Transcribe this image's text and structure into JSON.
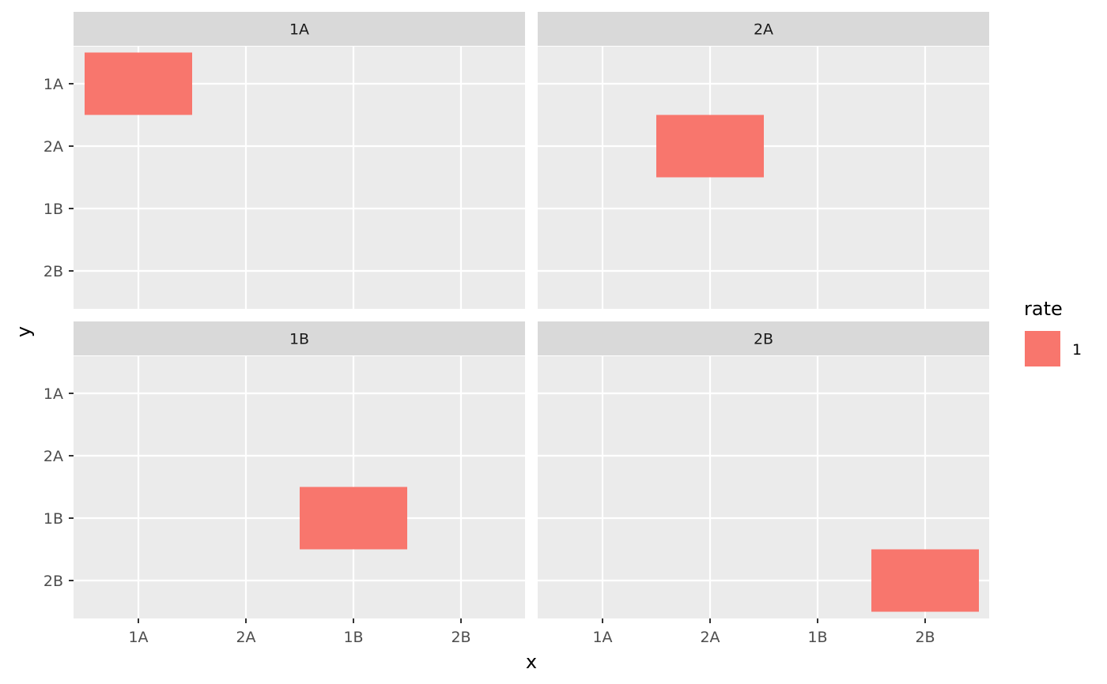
{
  "chart_data": {
    "type": "heatmap",
    "facet_by": "panel",
    "panels": [
      "1A",
      "2A",
      "1B",
      "2B"
    ],
    "x_categories": [
      "1A",
      "2A",
      "1B",
      "2B"
    ],
    "y_categories": [
      "1A",
      "2A",
      "1B",
      "2B"
    ],
    "xlabel": "x",
    "ylabel": "y",
    "tiles": [
      {
        "panel": "1A",
        "x": "1A",
        "y": "1A",
        "rate": 1
      },
      {
        "panel": "2A",
        "x": "2A",
        "y": "2A",
        "rate": 1
      },
      {
        "panel": "1B",
        "x": "1B",
        "y": "1B",
        "rate": 1
      },
      {
        "panel": "2B",
        "x": "2B",
        "y": "2B",
        "rate": 1
      }
    ],
    "legend": {
      "title": "rate",
      "position": "right",
      "entries": [
        {
          "label": "1",
          "color": "#F8766D"
        }
      ]
    },
    "colors": {
      "panel_bg": "#EBEBEB",
      "strip_bg": "#D9D9D9",
      "grid": "#FFFFFF",
      "tile": "#F8766D",
      "tick": "#333333"
    },
    "grid": true
  }
}
